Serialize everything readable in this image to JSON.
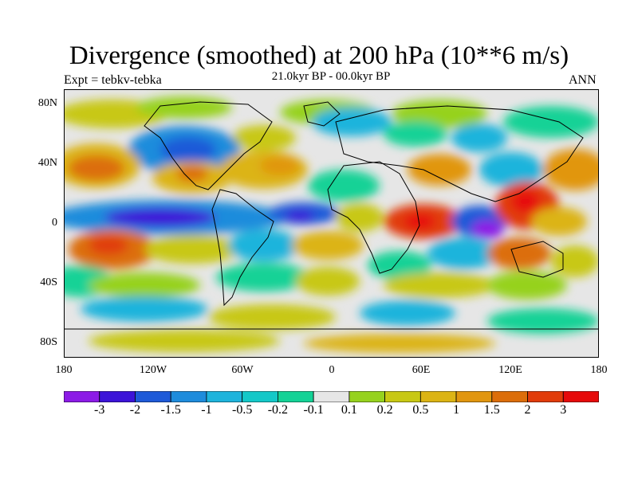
{
  "title": "Divergence (smoothed) at 200 hPa (10**6 m/s)",
  "subtitle_left": "Expt = tebkv-tebka",
  "subtitle_center": "21.0kyr BP - 00.0kyr BP",
  "subtitle_right": "ANN",
  "lat_labels": [
    "80N",
    "40N",
    "0",
    "40S",
    "80S"
  ],
  "lon_labels": [
    "180",
    "120W",
    "60W",
    "0",
    "60E",
    "120E",
    "180"
  ],
  "colorbar": {
    "colors": [
      "#8c1be6",
      "#3c14d8",
      "#1e5ad8",
      "#1e8cdc",
      "#1eb4dc",
      "#14c8c8",
      "#14d296",
      "#e6e6e6",
      "#96d21e",
      "#c8c814",
      "#dcb414",
      "#e1960f",
      "#dc6e0a",
      "#e13c0a",
      "#e60a0a"
    ],
    "labels": [
      "-3",
      "-2",
      "-1.5",
      "-1",
      "-0.5",
      "-0.2",
      "-0.1",
      "0.1",
      "0.2",
      "0.5",
      "1",
      "1.5",
      "2",
      "3"
    ]
  }
}
